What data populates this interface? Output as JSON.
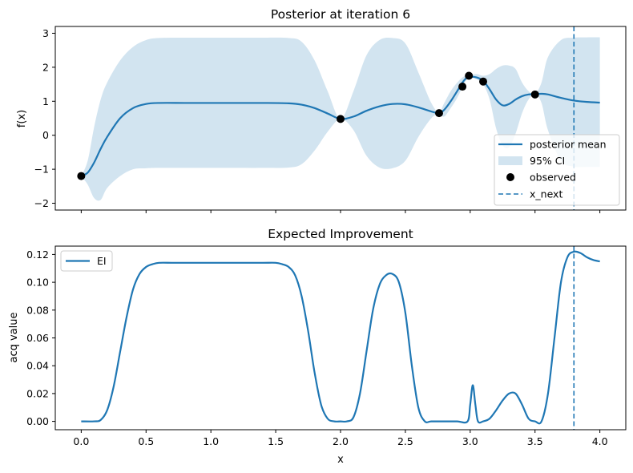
{
  "chart_data": [
    {
      "type": "line",
      "title": "Posterior at iteration 6",
      "xlabel": "",
      "ylabel": "f(x)",
      "xlim": [
        -0.2,
        4.2
      ],
      "ylim": [
        -2.2,
        3.2
      ],
      "xticks": [
        0.0,
        0.5,
        1.0,
        1.5,
        2.0,
        2.5,
        3.0,
        3.5,
        4.0
      ],
      "xtick_labels_visible": false,
      "yticks": [
        -2,
        -1,
        0,
        1,
        2,
        3
      ],
      "ytick_labels": [
        "−2",
        "−1",
        "0",
        "1",
        "2",
        "3"
      ],
      "colors": {
        "mean": "#1f77b4",
        "ci": "#1f77b4",
        "observed": "#000000",
        "x_next": "#1f77b4"
      },
      "series": [
        {
          "name": "posterior mean",
          "x": [
            0.0,
            0.05,
            0.1,
            0.15,
            0.2,
            0.3,
            0.4,
            0.5,
            0.6,
            0.8,
            1.0,
            1.2,
            1.4,
            1.6,
            1.7,
            1.8,
            1.9,
            2.0,
            2.1,
            2.2,
            2.3,
            2.4,
            2.5,
            2.6,
            2.7,
            2.76,
            2.8,
            2.85,
            2.9,
            2.94,
            2.97,
            3.0,
            3.05,
            3.1,
            3.15,
            3.2,
            3.25,
            3.3,
            3.35,
            3.4,
            3.45,
            3.5,
            3.55,
            3.6,
            3.7,
            3.8,
            3.9,
            4.0
          ],
          "y": [
            -1.2,
            -1.1,
            -0.8,
            -0.4,
            -0.05,
            0.5,
            0.8,
            0.92,
            0.95,
            0.95,
            0.95,
            0.95,
            0.95,
            0.94,
            0.9,
            0.8,
            0.64,
            0.48,
            0.55,
            0.72,
            0.85,
            0.92,
            0.91,
            0.82,
            0.7,
            0.65,
            0.75,
            1.0,
            1.3,
            1.55,
            1.68,
            1.72,
            1.7,
            1.6,
            1.35,
            1.05,
            0.88,
            0.92,
            1.05,
            1.15,
            1.2,
            1.21,
            1.22,
            1.2,
            1.1,
            1.02,
            0.98,
            0.96
          ]
        },
        {
          "name": "95% CI",
          "x": [
            0.0,
            0.05,
            0.1,
            0.15,
            0.2,
            0.3,
            0.4,
            0.5,
            0.6,
            0.8,
            1.0,
            1.2,
            1.4,
            1.6,
            1.7,
            1.8,
            1.9,
            2.0,
            2.1,
            2.2,
            2.3,
            2.4,
            2.5,
            2.6,
            2.7,
            2.76,
            2.8,
            2.85,
            2.9,
            2.94,
            2.97,
            3.0,
            3.05,
            3.1,
            3.15,
            3.2,
            3.25,
            3.3,
            3.35,
            3.4,
            3.45,
            3.5,
            3.55,
            3.6,
            3.7,
            3.8,
            3.9,
            4.0
          ],
          "lower": [
            -1.2,
            -1.45,
            -1.85,
            -1.9,
            -1.55,
            -1.2,
            -1.0,
            -0.97,
            -0.96,
            -0.96,
            -0.96,
            -0.96,
            -0.96,
            -0.95,
            -0.85,
            -0.45,
            0.1,
            0.48,
            0.15,
            -0.6,
            -0.95,
            -0.97,
            -0.75,
            -0.05,
            0.5,
            0.62,
            0.55,
            0.8,
            1.1,
            1.42,
            1.62,
            1.7,
            1.64,
            1.5,
            1.05,
            0.2,
            -0.3,
            -0.35,
            0.05,
            0.65,
            1.05,
            1.2,
            0.95,
            0.15,
            -0.75,
            -0.92,
            -0.93,
            -0.93
          ],
          "upper": [
            -1.2,
            -0.75,
            0.25,
            1.05,
            1.55,
            2.2,
            2.6,
            2.8,
            2.86,
            2.87,
            2.87,
            2.87,
            2.87,
            2.86,
            2.75,
            2.2,
            1.3,
            0.48,
            1.3,
            2.35,
            2.8,
            2.86,
            2.7,
            1.85,
            0.95,
            0.68,
            0.95,
            1.3,
            1.55,
            1.7,
            1.76,
            1.78,
            1.8,
            1.75,
            1.8,
            1.95,
            2.05,
            2.05,
            1.95,
            1.55,
            1.3,
            1.22,
            1.55,
            2.3,
            2.8,
            2.87,
            2.88,
            2.88
          ]
        },
        {
          "name": "observed",
          "kind": "scatter",
          "points": [
            {
              "x": 0.0,
              "y": -1.2
            },
            {
              "x": 2.0,
              "y": 0.48
            },
            {
              "x": 2.76,
              "y": 0.65
            },
            {
              "x": 2.94,
              "y": 1.43
            },
            {
              "x": 2.99,
              "y": 1.75
            },
            {
              "x": 3.1,
              "y": 1.58
            },
            {
              "x": 3.5,
              "y": 1.2
            }
          ]
        },
        {
          "name": "x_next",
          "kind": "vline",
          "x": 3.8
        }
      ],
      "legend": {
        "position": "lower-right",
        "entries": [
          "posterior mean",
          "95% CI",
          "observed",
          "x_next"
        ]
      }
    },
    {
      "type": "line",
      "title": "Expected Improvement",
      "xlabel": "x",
      "ylabel": "acq value",
      "xlim": [
        -0.2,
        4.2
      ],
      "ylim": [
        -0.006,
        0.126
      ],
      "xticks": [
        0.0,
        0.5,
        1.0,
        1.5,
        2.0,
        2.5,
        3.0,
        3.5,
        4.0
      ],
      "xtick_labels": [
        "0.0",
        "0.5",
        "1.0",
        "1.5",
        "2.0",
        "2.5",
        "3.0",
        "3.5",
        "4.0"
      ],
      "yticks": [
        0.0,
        0.02,
        0.04,
        0.06,
        0.08,
        0.1,
        0.12
      ],
      "ytick_labels": [
        "0.00",
        "0.02",
        "0.04",
        "0.06",
        "0.08",
        "0.10",
        "0.12"
      ],
      "colors": {
        "ei": "#1f77b4",
        "x_next": "#1f77b4"
      },
      "series": [
        {
          "name": "EI",
          "x": [
            0.0,
            0.1,
            0.15,
            0.2,
            0.25,
            0.3,
            0.35,
            0.4,
            0.45,
            0.5,
            0.55,
            0.6,
            0.7,
            0.8,
            1.0,
            1.2,
            1.4,
            1.5,
            1.55,
            1.6,
            1.65,
            1.7,
            1.75,
            1.8,
            1.85,
            1.9,
            1.95,
            2.0,
            2.05,
            2.1,
            2.15,
            2.2,
            2.25,
            2.3,
            2.35,
            2.4,
            2.45,
            2.5,
            2.55,
            2.6,
            2.65,
            2.7,
            2.8,
            2.9,
            2.98,
            3.0,
            3.02,
            3.04,
            3.06,
            3.1,
            3.15,
            3.2,
            3.25,
            3.3,
            3.35,
            3.4,
            3.45,
            3.5,
            3.55,
            3.6,
            3.65,
            3.7,
            3.75,
            3.8,
            3.85,
            3.9,
            3.95,
            4.0
          ],
          "y": [
            0.0,
            0.0,
            0.001,
            0.008,
            0.025,
            0.05,
            0.075,
            0.095,
            0.106,
            0.111,
            0.113,
            0.114,
            0.114,
            0.114,
            0.114,
            0.114,
            0.114,
            0.114,
            0.113,
            0.111,
            0.105,
            0.09,
            0.065,
            0.035,
            0.012,
            0.002,
            0.0,
            0.0,
            0.0,
            0.003,
            0.02,
            0.05,
            0.08,
            0.098,
            0.105,
            0.106,
            0.1,
            0.078,
            0.04,
            0.01,
            0.0,
            0.0,
            0.0,
            0.0,
            0.0,
            0.012,
            0.026,
            0.012,
            0.0,
            0.0,
            0.002,
            0.008,
            0.015,
            0.02,
            0.02,
            0.012,
            0.002,
            0.0,
            0.0,
            0.02,
            0.06,
            0.1,
            0.118,
            0.122,
            0.121,
            0.118,
            0.116,
            0.115
          ]
        },
        {
          "name": "x_next",
          "kind": "vline",
          "x": 3.8
        }
      ],
      "legend": {
        "position": "upper-left",
        "entries": [
          "EI"
        ]
      }
    }
  ]
}
